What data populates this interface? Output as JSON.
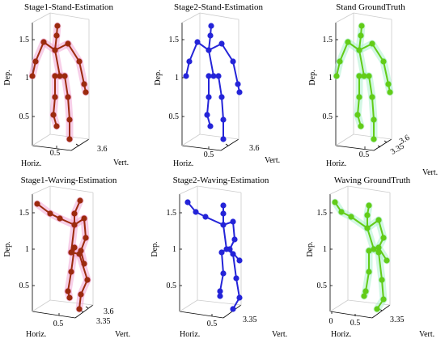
{
  "colors": {
    "stage1": "#9c2a0e",
    "stage2": "#2424d8",
    "ground_truth": "#62cc18"
  },
  "panels": [
    {
      "title": "Stage1-Stand-Estimation",
      "color_key": "stage1",
      "y_ticks": [
        "1.5",
        "1",
        "0.5"
      ],
      "x_ticks": [
        "0.5"
      ],
      "z_ticks": [
        "3.6"
      ],
      "y_label": "Dep.",
      "x_label": "Horiz.",
      "z_label": "Vert."
    },
    {
      "title": "Stage2-Stand-Estimation",
      "color_key": "stage2",
      "y_ticks": [
        "1.5",
        "1",
        "0.5"
      ],
      "x_ticks": [
        "0.5"
      ],
      "z_ticks": [
        "3.6"
      ],
      "y_label": "Dep.",
      "x_label": "Horiz.",
      "z_label": "Vert."
    },
    {
      "title": "Stand GroundTruth",
      "color_key": "ground_truth",
      "y_ticks": [
        "1.5",
        "1",
        "0.5"
      ],
      "x_ticks": [
        "0.5"
      ],
      "z_ticks": [
        "3.6",
        "3.35"
      ],
      "y_label": "Dep.",
      "x_label": "Horiz.",
      "z_label": "Vert."
    },
    {
      "title": "Stage1-Waving-Estimation",
      "color_key": "stage1",
      "y_ticks": [
        "1.5",
        "1",
        "0.5"
      ],
      "x_ticks": [
        "0.5"
      ],
      "z_ticks": [
        "3.6",
        "3.35"
      ],
      "y_label": "Dep.",
      "x_label": "Horiz.",
      "z_label": "Vert."
    },
    {
      "title": "Stage2-Waving-Estimation",
      "color_key": "stage2",
      "y_ticks": [
        "1.5",
        "1",
        "0.5"
      ],
      "x_ticks": [
        "0.5"
      ],
      "z_ticks": [
        "3.35"
      ],
      "y_label": "Dep.",
      "x_label": "Horiz.",
      "z_label": "Vert."
    },
    {
      "title": "Waving GroundTruth",
      "color_key": "ground_truth",
      "y_ticks": [
        "1.5",
        "1",
        "0.5"
      ],
      "x_ticks": [
        "0",
        "0.5"
      ],
      "z_ticks": [
        "3.35"
      ],
      "y_label": "Dep.",
      "x_label": "Horiz.",
      "z_label": "Vert."
    }
  ]
}
